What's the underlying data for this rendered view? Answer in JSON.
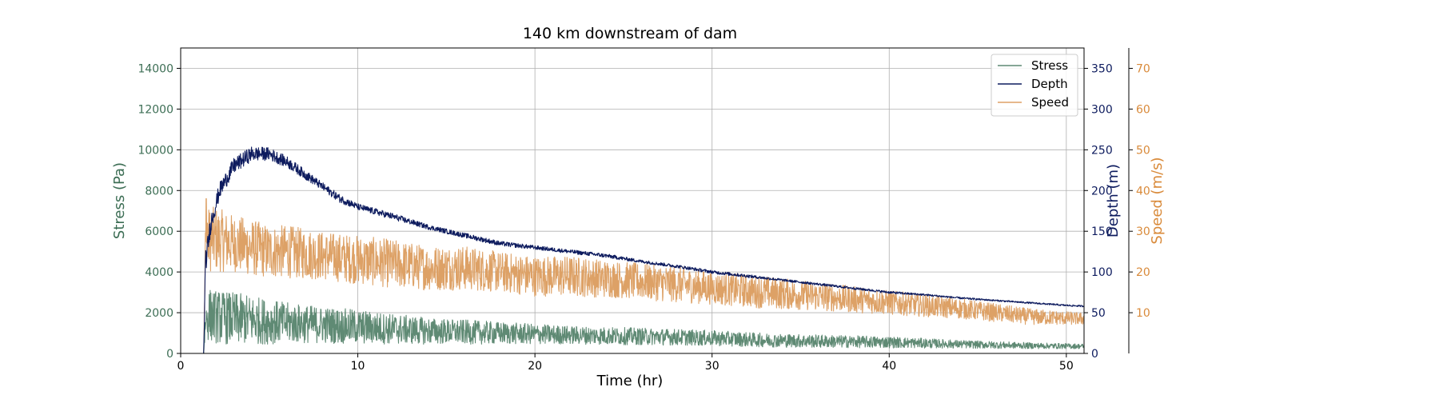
{
  "chart_data": {
    "type": "line",
    "title": "140 km downstream of dam",
    "xlabel": "Time (hr)",
    "xlim": [
      0,
      51
    ],
    "xticks": [
      0,
      10,
      20,
      30,
      40,
      50
    ],
    "grid": true,
    "legend_position": "top-right",
    "axes": [
      {
        "id": "stress",
        "label": "Stress (Pa)",
        "side": "left",
        "ylim": [
          0,
          15000
        ],
        "ticks": [
          0,
          2000,
          4000,
          6000,
          8000,
          10000,
          12000,
          14000
        ],
        "color": "#3d6e55"
      },
      {
        "id": "depth",
        "label": "Depth (m)",
        "side": "right",
        "ylim": [
          0,
          375
        ],
        "ticks": [
          0,
          50,
          100,
          150,
          200,
          250,
          300,
          350
        ],
        "color": "#0d1b5e"
      },
      {
        "id": "speed",
        "label": "Speed (m/s)",
        "side": "right-outer",
        "ylim": [
          0,
          75
        ],
        "ticks": [
          10,
          20,
          30,
          40,
          50,
          60,
          70
        ],
        "color": "#d98a3a"
      }
    ],
    "series": [
      {
        "name": "Stress",
        "axis": "stress",
        "color": "#5f8a74",
        "x": [
          0,
          1.3,
          1.4,
          1.6,
          2,
          3,
          4,
          5,
          6,
          8,
          10,
          12,
          14,
          16,
          18,
          20,
          22,
          25,
          28,
          30,
          33,
          36,
          40,
          44,
          48,
          51
        ],
        "y": [
          0,
          0,
          1600,
          1900,
          1800,
          1700,
          1650,
          1550,
          1500,
          1400,
          1300,
          1200,
          1100,
          1050,
          1000,
          950,
          900,
          850,
          800,
          750,
          650,
          600,
          550,
          450,
          380,
          350
        ],
        "noise": [
          0,
          0,
          900,
          1300,
          1300,
          1300,
          1200,
          1100,
          1000,
          900,
          850,
          750,
          650,
          600,
          550,
          500,
          450,
          430,
          400,
          380,
          340,
          320,
          280,
          200,
          150,
          120
        ]
      },
      {
        "name": "Depth",
        "axis": "depth",
        "color": "#0d1b5e",
        "x": [
          0,
          1.3,
          1.4,
          1.7,
          2.2,
          3,
          4,
          5,
          6,
          7,
          8,
          9,
          10,
          12,
          14,
          16,
          18,
          20,
          22,
          24,
          26,
          28,
          30,
          32,
          34,
          36,
          38,
          40,
          42,
          44,
          46,
          48,
          50,
          51
        ],
        "y": [
          0,
          0,
          110,
          160,
          200,
          230,
          245,
          245,
          235,
          220,
          205,
          190,
          180,
          168,
          155,
          145,
          135,
          130,
          125,
          120,
          113,
          107,
          100,
          95,
          90,
          85,
          80,
          75,
          72,
          68,
          65,
          62,
          59,
          58
        ],
        "noise": [
          0,
          0,
          15,
          12,
          10,
          10,
          9,
          8,
          7,
          6,
          5,
          5,
          4,
          4,
          3,
          3,
          3,
          2.5,
          2.5,
          2.5,
          2,
          2,
          2,
          2,
          1.5,
          1.5,
          1.5,
          1.5,
          1.2,
          1.2,
          1,
          1,
          1,
          1
        ]
      },
      {
        "name": "Speed",
        "axis": "speed",
        "color": "#dda166",
        "x": [
          0,
          1.3,
          1.4,
          1.6,
          2,
          3,
          4,
          5,
          6,
          8,
          10,
          12,
          14,
          16,
          18,
          20,
          22,
          25,
          28,
          30,
          33,
          36,
          40,
          44,
          48,
          51
        ],
        "y": [
          0,
          0,
          25,
          28,
          28,
          27,
          26,
          25,
          25,
          24,
          23,
          22,
          21,
          21,
          20,
          19,
          19,
          18,
          17,
          16,
          15,
          14,
          12.5,
          11,
          9,
          8.5
        ],
        "noise": [
          0,
          0,
          10,
          8,
          8,
          7,
          7,
          6.5,
          6.5,
          6,
          6,
          6,
          5.5,
          5.5,
          5,
          5,
          5,
          4.5,
          4.5,
          4,
          4,
          3.5,
          3,
          2.5,
          2,
          1.5
        ],
        "spikes": [
          {
            "x": 1.45,
            "y": 38
          },
          {
            "x": 1.5,
            "y": 32
          }
        ]
      }
    ]
  }
}
